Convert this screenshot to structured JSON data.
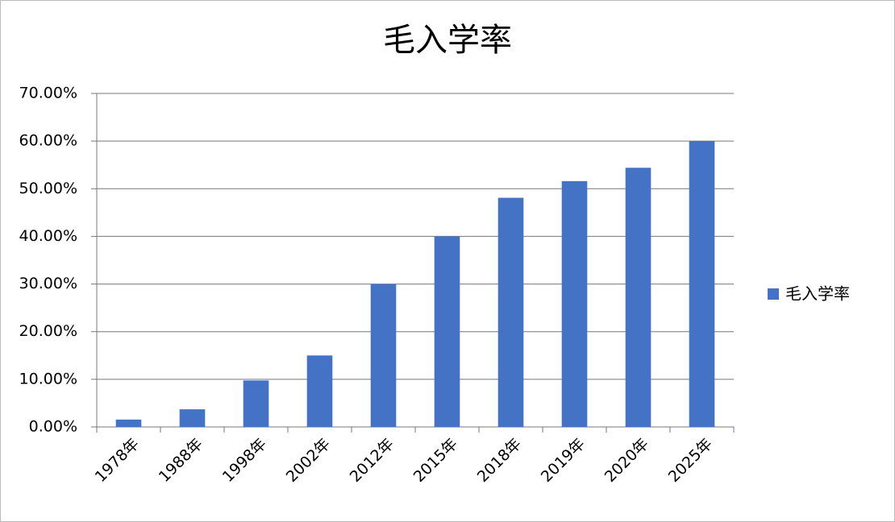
{
  "chart_data": {
    "type": "bar",
    "title": "毛入学率",
    "categories": [
      "1978年",
      "1988年",
      "1998年",
      "2002年",
      "2012年",
      "2015年",
      "2018年",
      "2019年",
      "2020年",
      "2025年"
    ],
    "series": [
      {
        "name": "毛入学率",
        "color": "#4472c4",
        "values": [
          1.55,
          3.7,
          9.76,
          15,
          30,
          40,
          48.1,
          51.6,
          54.4,
          60
        ]
      }
    ],
    "ylim": [
      0,
      70
    ],
    "yticks": [
      {
        "value": 0,
        "label": "0.00%"
      },
      {
        "value": 10,
        "label": "10.00%"
      },
      {
        "value": 20,
        "label": "20.00%"
      },
      {
        "value": 30,
        "label": "30.00%"
      },
      {
        "value": 40,
        "label": "40.00%"
      },
      {
        "value": 50,
        "label": "50.00%"
      },
      {
        "value": 60,
        "label": "60.00%"
      },
      {
        "value": 70,
        "label": "70.00%"
      }
    ],
    "grid": true,
    "legend": "right"
  }
}
